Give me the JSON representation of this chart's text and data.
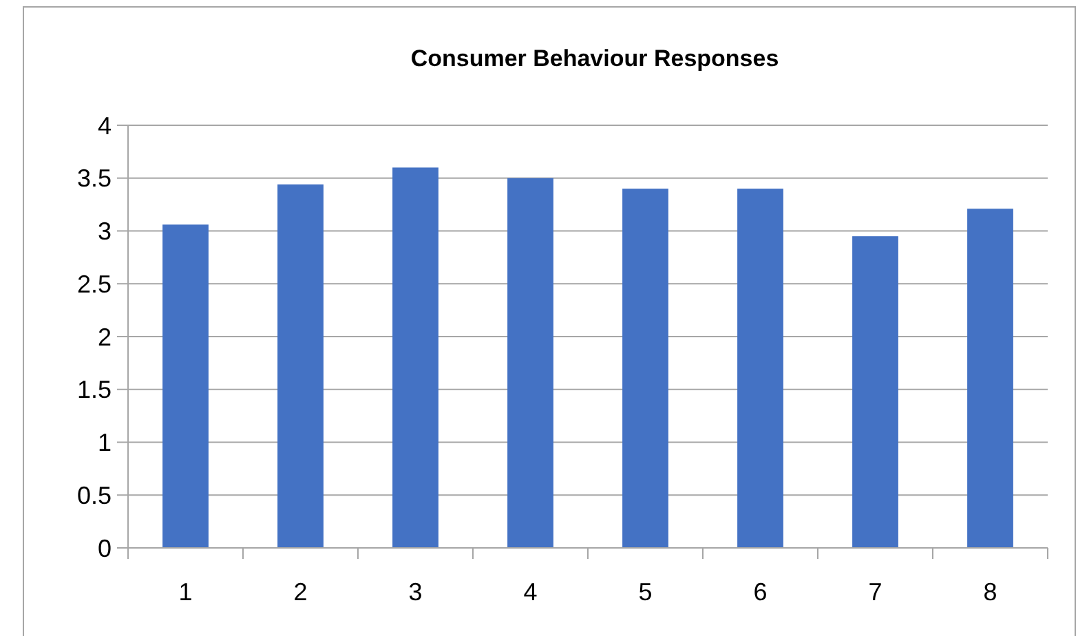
{
  "chart_data": {
    "type": "bar",
    "title": "Consumer Behaviour Responses",
    "categories": [
      "1",
      "2",
      "3",
      "4",
      "5",
      "6",
      "7",
      "8"
    ],
    "values": [
      3.06,
      3.44,
      3.6,
      3.5,
      3.4,
      3.4,
      2.95,
      3.21
    ],
    "color": "#4472c4",
    "ylim": [
      0,
      4
    ],
    "yticks": [
      0,
      0.5,
      1,
      1.5,
      2,
      2.5,
      3,
      3.5,
      4
    ],
    "grid": "y"
  }
}
